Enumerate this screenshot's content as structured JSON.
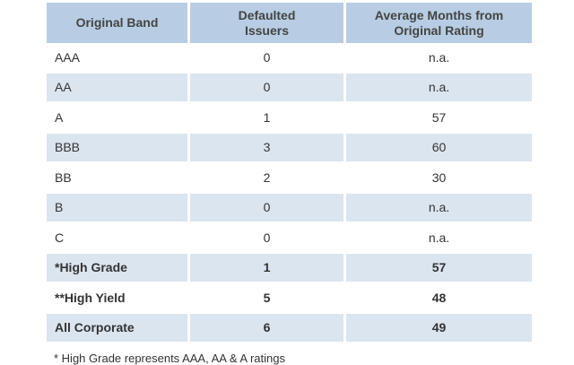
{
  "headers": [
    "Original Band",
    "Defaulted\nIssuers",
    "Average Months from\nOriginal Rating"
  ],
  "rows": [
    {
      "band": "AAA",
      "defaulted": "0",
      "months": "n.a."
    },
    {
      "band": "AA",
      "defaulted": "0",
      "months": "n.a."
    },
    {
      "band": "A",
      "defaulted": "1",
      "months": "57"
    },
    {
      "band": "BBB",
      "defaulted": "3",
      "months": "60"
    },
    {
      "band": "BB",
      "defaulted": "2",
      "months": "30"
    },
    {
      "band": "B",
      "defaulted": "0",
      "months": "n.a."
    },
    {
      "band": "C",
      "defaulted": "0",
      "months": "n.a."
    },
    {
      "band": "*High Grade",
      "defaulted": "1",
      "months": "57"
    },
    {
      "band": "**High Yield",
      "defaulted": "5",
      "months": "48"
    },
    {
      "band": "All Corporate",
      "defaulted": "6",
      "months": "49"
    }
  ],
  "footnote": "* High Grade represents AAA, AA & A ratings"
}
